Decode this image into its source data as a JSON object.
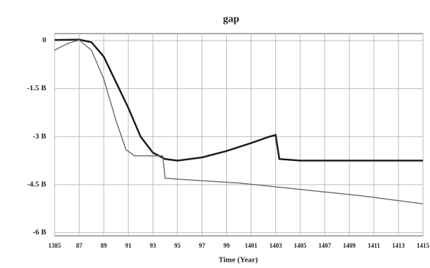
{
  "chart_data": {
    "type": "line",
    "title": "gap",
    "x_label": "Time (Year)",
    "xlim": [
      1385,
      1415
    ],
    "xticks": [
      1385,
      {
        "value": 1387,
        "label": "87"
      },
      {
        "value": 1389,
        "label": "89"
      },
      {
        "value": 1391,
        "label": "91"
      },
      {
        "value": 1393,
        "label": "93"
      },
      {
        "value": 1395,
        "label": "95"
      },
      {
        "value": 1397,
        "label": "97"
      },
      {
        "value": 1399,
        "label": "99"
      },
      1401,
      1403,
      1405,
      1407,
      1409,
      1411,
      1413,
      1415
    ],
    "ylim": [
      -6100000000,
      220000000
    ],
    "yticks": [
      0,
      {
        "value": -1500000000,
        "label": "-1.5 B"
      },
      {
        "value": -3000000000,
        "label": "-3 B"
      },
      {
        "value": -4500000000,
        "label": "-4.5 B"
      },
      {
        "value": -6000000000,
        "label": "-6 B"
      }
    ],
    "grid": true,
    "series": [
      {
        "color": "#1a1a1a",
        "x": [
          1385,
          1387,
          1388,
          1389,
          1390,
          1391,
          1392,
          1393,
          1394,
          1395,
          1397,
          1399,
          1401,
          1402.5,
          1403,
          1403.3,
          1405,
          1415
        ],
        "values": [
          20000000,
          30000000,
          -50000000,
          -500000000,
          -1300000000,
          -2100000000,
          -3000000000,
          -3500000000,
          -3700000000,
          -3750000000,
          -3650000000,
          -3450000000,
          -3200000000,
          -3000000000,
          -2950000000,
          -3700000000,
          -3750000000,
          -3750000000
        ]
      },
      {
        "color": "#666666",
        "x": [
          1385,
          1386,
          1387,
          1388,
          1389,
          1390,
          1390.8,
          1391.5,
          1393,
          1393.8,
          1394,
          1395,
          1400,
          1405,
          1410,
          1415
        ],
        "values": [
          -300000000,
          -100000000,
          20000000,
          -300000000,
          -1200000000,
          -2500000000,
          -3400000000,
          -3600000000,
          -3600000000,
          -3600000000,
          -4300000000,
          -4330000000,
          -4450000000,
          -4650000000,
          -4850000000,
          -5100000000
        ]
      }
    ]
  }
}
